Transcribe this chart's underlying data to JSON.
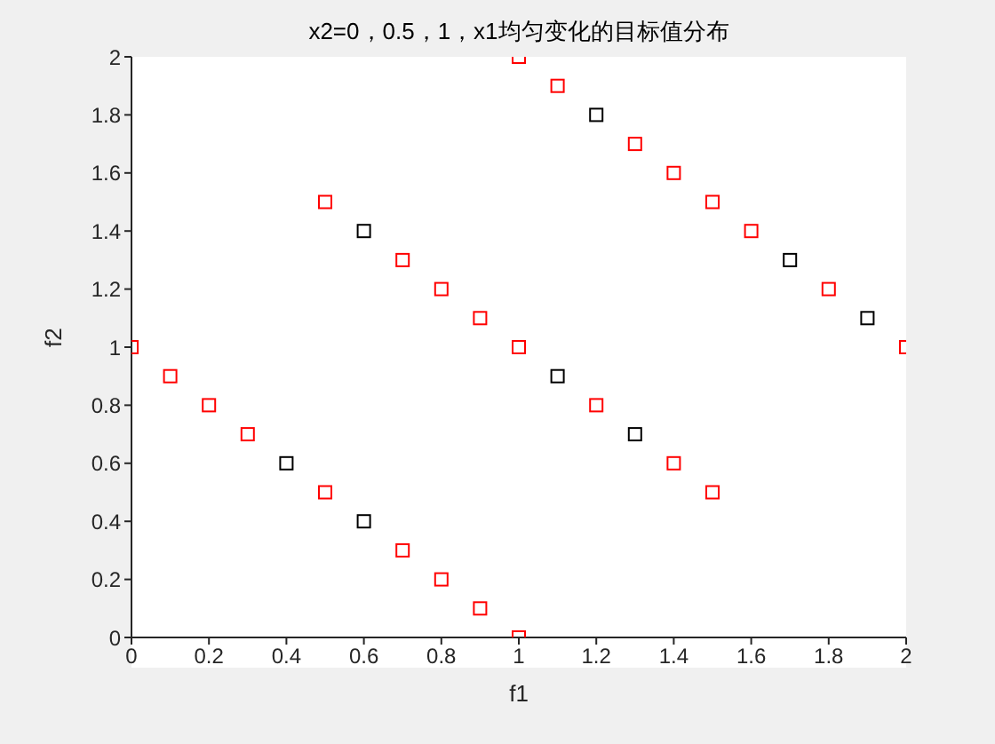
{
  "chart_data": {
    "type": "scatter",
    "title": "x2=0，0.5，1，x1均匀变化的目标值分布",
    "xlabel": "f1",
    "ylabel": "f2",
    "xlim": [
      0,
      2
    ],
    "ylim": [
      0,
      2
    ],
    "xticks": [
      0,
      0.2,
      0.4,
      0.6,
      0.8,
      1,
      1.2,
      1.4,
      1.6,
      1.8,
      2
    ],
    "yticks": [
      0,
      0.2,
      0.4,
      0.6,
      0.8,
      1,
      1.2,
      1.4,
      1.6,
      1.8,
      2
    ],
    "grid": false,
    "legend": false,
    "marker": "square",
    "series": [
      {
        "color": "#000000",
        "x": [
          0.4,
          0.6,
          0.6,
          1.1,
          1.3,
          1.2,
          1.7,
          1.9
        ],
        "values": [
          0.6,
          0.4,
          1.4,
          0.9,
          0.7,
          1.8,
          1.3,
          1.1
        ]
      },
      {
        "color": "#ff0000",
        "x": [
          0,
          0.1,
          0.2,
          0.3,
          0.5,
          0.7,
          0.8,
          0.9,
          1,
          0.5,
          0.7,
          0.8,
          0.9,
          1,
          1.2,
          1.4,
          1.5,
          1,
          1.1,
          1.3,
          1.4,
          1.5,
          1.6,
          1.8,
          2
        ],
        "values": [
          1,
          0.9,
          0.8,
          0.7,
          0.5,
          0.3,
          0.2,
          0.1,
          0,
          1.5,
          1.3,
          1.2,
          1.1,
          1,
          0.8,
          0.6,
          0.5,
          2,
          1.9,
          1.7,
          1.6,
          1.5,
          1.4,
          1.2,
          1
        ]
      }
    ]
  }
}
